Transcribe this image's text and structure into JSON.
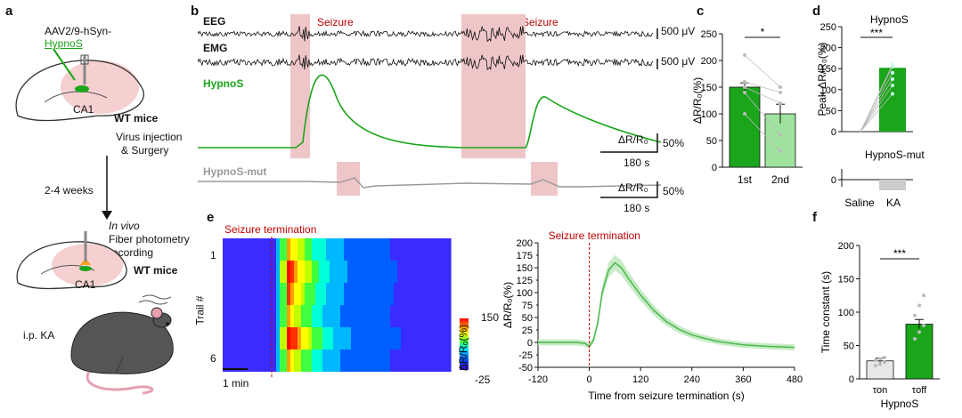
{
  "panels": {
    "a": "a",
    "b": "b",
    "c": "c",
    "d": "d",
    "e": "e",
    "f": "f"
  },
  "panel_a": {
    "virus_line1": "AAV2/9-hSyn-",
    "virus_line2": "HypnoS",
    "ca1_top": "CA1",
    "wt_mice_top": "WT mice",
    "virus_injection": "Virus injection",
    "surgery": "& Surgery",
    "weeks": "2-4 weeks",
    "in_vivo": "In vivo",
    "fiber": "Fiber photometry",
    "recording": "recording",
    "ca1_bottom": "CA1",
    "wt_mice_bottom": "WT mice",
    "ip_ka": "i.p. KA"
  },
  "panel_b": {
    "eeg": "EEG",
    "emg": "EMG",
    "hypnos": "HypnoS",
    "hypnos_mut": "HypnoS-mut",
    "seizure1": "Seizure",
    "seizure2": "Seizure",
    "eeg_scale": "500 μV",
    "emg_scale": "500 μV",
    "dr_label1": "ΔR/R₀",
    "pct1": "50%",
    "time1": "180 s",
    "dr_label2": "ΔR/R₀",
    "pct2": "50%",
    "time2": "180 s"
  },
  "panel_e": {
    "seizure_termination": "Seizure termination",
    "row_top": "1",
    "row_bottom": "6",
    "ylabel": "Trail #",
    "scale_bar": "1 min",
    "cbar_max": "150",
    "cbar_min": "-25",
    "cbar_label": "ΔR/R₀(%)"
  },
  "colors": {
    "green": "#1aa51a",
    "light_green": "#9fe39f",
    "seizure_shade": "#efc6c8",
    "red": "#c00000"
  },
  "chart_data": [
    {
      "id": "c",
      "type": "bar",
      "categories": [
        "1st",
        "2nd"
      ],
      "values": [
        150,
        100
      ],
      "errors": [
        8,
        18
      ],
      "ylabel": "ΔR/R₀(%)",
      "ylim": [
        0,
        250
      ],
      "yticks": [
        "0",
        "50",
        "100",
        "150",
        "200",
        "250"
      ],
      "significance": "*",
      "points_1st": [
        210,
        160,
        150,
        140,
        100
      ],
      "points_2nd": [
        150,
        140,
        120,
        60,
        30
      ]
    },
    {
      "id": "d_top",
      "type": "bar",
      "title": "HypnoS",
      "categories": [
        "Saline",
        "KA"
      ],
      "values": [
        0,
        152
      ],
      "ylabel": "Peak ΔR/R₀(%)",
      "ylim": [
        0,
        250
      ],
      "yticks": [
        "0",
        "50",
        "100",
        "150",
        "200",
        "250"
      ],
      "significance": "***"
    },
    {
      "id": "d_bottom",
      "type": "bar",
      "title": "HypnoS-mut",
      "categories": [
        "Saline",
        "KA"
      ],
      "values": [
        0,
        -8
      ],
      "ylim": [
        -15,
        5
      ],
      "yticks": [
        "0"
      ],
      "xlabels": [
        "Saline",
        "KA"
      ]
    },
    {
      "id": "e_line",
      "type": "line",
      "title": "Seizure termination",
      "xlabel": "Time from seizure termination  (s)",
      "ylabel": "ΔR/R₀(%)",
      "xlim": [
        -120,
        480
      ],
      "ylim": [
        -50,
        200
      ],
      "xticks": [
        "-120",
        "0",
        "120",
        "240",
        "360",
        "480"
      ],
      "yticks": [
        "-50",
        "-25",
        "0",
        "25",
        "50",
        "75",
        "100",
        "125",
        "150",
        "175",
        "200"
      ],
      "x": [
        -120,
        -30,
        -10,
        0,
        10,
        20,
        30,
        45,
        60,
        75,
        90,
        120,
        150,
        180,
        210,
        240,
        270,
        300,
        360,
        420,
        480
      ],
      "y": [
        0,
        0,
        -2,
        -8,
        5,
        40,
        100,
        145,
        160,
        150,
        130,
        95,
        65,
        42,
        26,
        15,
        8,
        2,
        -5,
        -8,
        -10
      ]
    },
    {
      "id": "f",
      "type": "bar",
      "categories": [
        "τon",
        "τoff"
      ],
      "values": [
        27,
        82
      ],
      "errors": [
        4,
        7
      ],
      "ylabel": "Time constant (s)",
      "xlabel": "HypnoS",
      "ylim": [
        0,
        200
      ],
      "yticks": [
        "0",
        "50",
        "100",
        "150",
        "200"
      ],
      "significance": "***"
    }
  ]
}
